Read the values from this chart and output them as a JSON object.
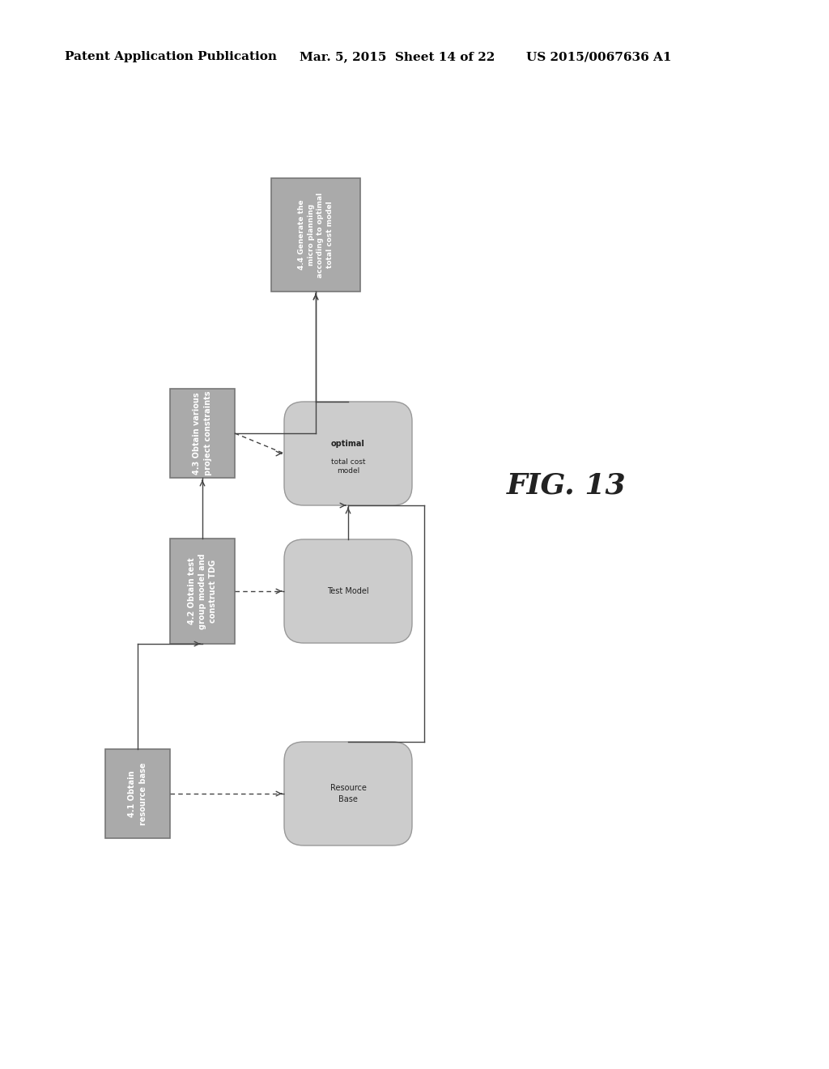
{
  "title_left": "Patent Application Publication",
  "title_mid": "Mar. 5, 2015  Sheet 14 of 22",
  "title_right": "US 2015/0067636 A1",
  "fig_label": "FIG. 13",
  "background_color": "#ffffff",
  "box_facecolor": "#aaaaaa",
  "box_edgecolor": "#777777",
  "box_text_color": "#ffffff",
  "oval_facecolor": "#cccccc",
  "oval_edgecolor": "#999999",
  "oval_text_color": "#222222",
  "arrow_color": "#444444"
}
